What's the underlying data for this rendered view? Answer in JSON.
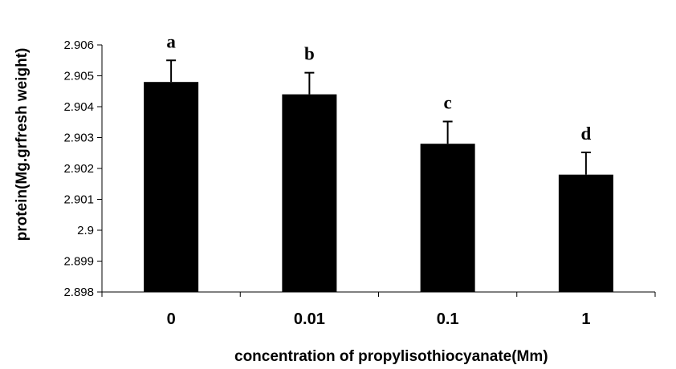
{
  "chart_data": {
    "type": "bar",
    "categories": [
      "0",
      "0.01",
      "0.1",
      "1"
    ],
    "values": [
      2.9048,
      2.9044,
      2.9028,
      2.9018
    ],
    "error_upper": [
      2.9055,
      2.9051,
      2.90352,
      2.90252
    ],
    "significance_labels": [
      "a",
      "b",
      "c",
      "d"
    ],
    "ylim": [
      2.898,
      2.906
    ],
    "yticks": [
      2.898,
      2.899,
      2.9,
      2.901,
      2.902,
      2.903,
      2.904,
      2.905,
      2.906
    ],
    "ytick_labels": [
      "2.898",
      "2.899",
      "2.9",
      "2.901",
      "2.902",
      "2.903",
      "2.904",
      "2.905",
      "2.906"
    ],
    "xlabel": "concentration of propylisothiocyanate(Mm)",
    "ylabel": "protein(Mg.grfresh weight)",
    "title": "",
    "grid": false,
    "bar_color": "#000000"
  }
}
